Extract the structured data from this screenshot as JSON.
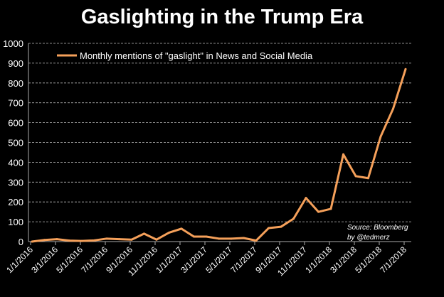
{
  "chart_data": {
    "type": "line",
    "title": "Gaslighting in the Trump Era",
    "xlabel": "",
    "ylabel": "",
    "ylim": [
      0,
      1000
    ],
    "yticks": [
      "0",
      "100",
      "200",
      "300",
      "400",
      "500",
      "600",
      "700",
      "800",
      "900",
      "1000"
    ],
    "x": [
      "1/1/2016",
      "2/1/2016",
      "3/1/2016",
      "4/1/2016",
      "5/1/2016",
      "6/1/2016",
      "7/1/2016",
      "8/1/2016",
      "9/1/2016",
      "10/1/2016",
      "11/1/2016",
      "12/1/2016",
      "1/1/2017",
      "2/1/2017",
      "3/1/2017",
      "4/1/2017",
      "5/1/2017",
      "6/1/2017",
      "7/1/2017",
      "8/1/2017",
      "9/1/2017",
      "10/1/2017",
      "11/1/2017",
      "12/1/2017",
      "1/1/2018",
      "2/1/2018",
      "3/1/2018",
      "4/1/2018",
      "5/1/2018",
      "6/1/2018",
      "7/1/2018"
    ],
    "xtick_labels": [
      "1/1/2016",
      "3/1/2016",
      "5/1/2016",
      "7/1/2016",
      "9/1/2016",
      "11/1/2016",
      "1/1/2017",
      "3/1/2017",
      "5/1/2017",
      "7/1/2017",
      "9/1/2017",
      "11/1/2017",
      "1/1/2018",
      "3/1/2018",
      "5/1/2018",
      "7/1/2018"
    ],
    "series": [
      {
        "name": "Monthly mentions of \"gaslight\" in News and Social Media",
        "color": "#f5a05a",
        "values": [
          0,
          8,
          12,
          5,
          3,
          6,
          15,
          12,
          10,
          40,
          10,
          45,
          65,
          25,
          25,
          15,
          15,
          18,
          5,
          68,
          75,
          115,
          220,
          150,
          165,
          440,
          330,
          320,
          530,
          670,
          870
        ]
      }
    ],
    "grid": true,
    "grid_style": "dashed horizontal",
    "legend_position": "top-left",
    "annotation": [
      "Source: Bloomberg",
      "by @tedmerz"
    ]
  }
}
